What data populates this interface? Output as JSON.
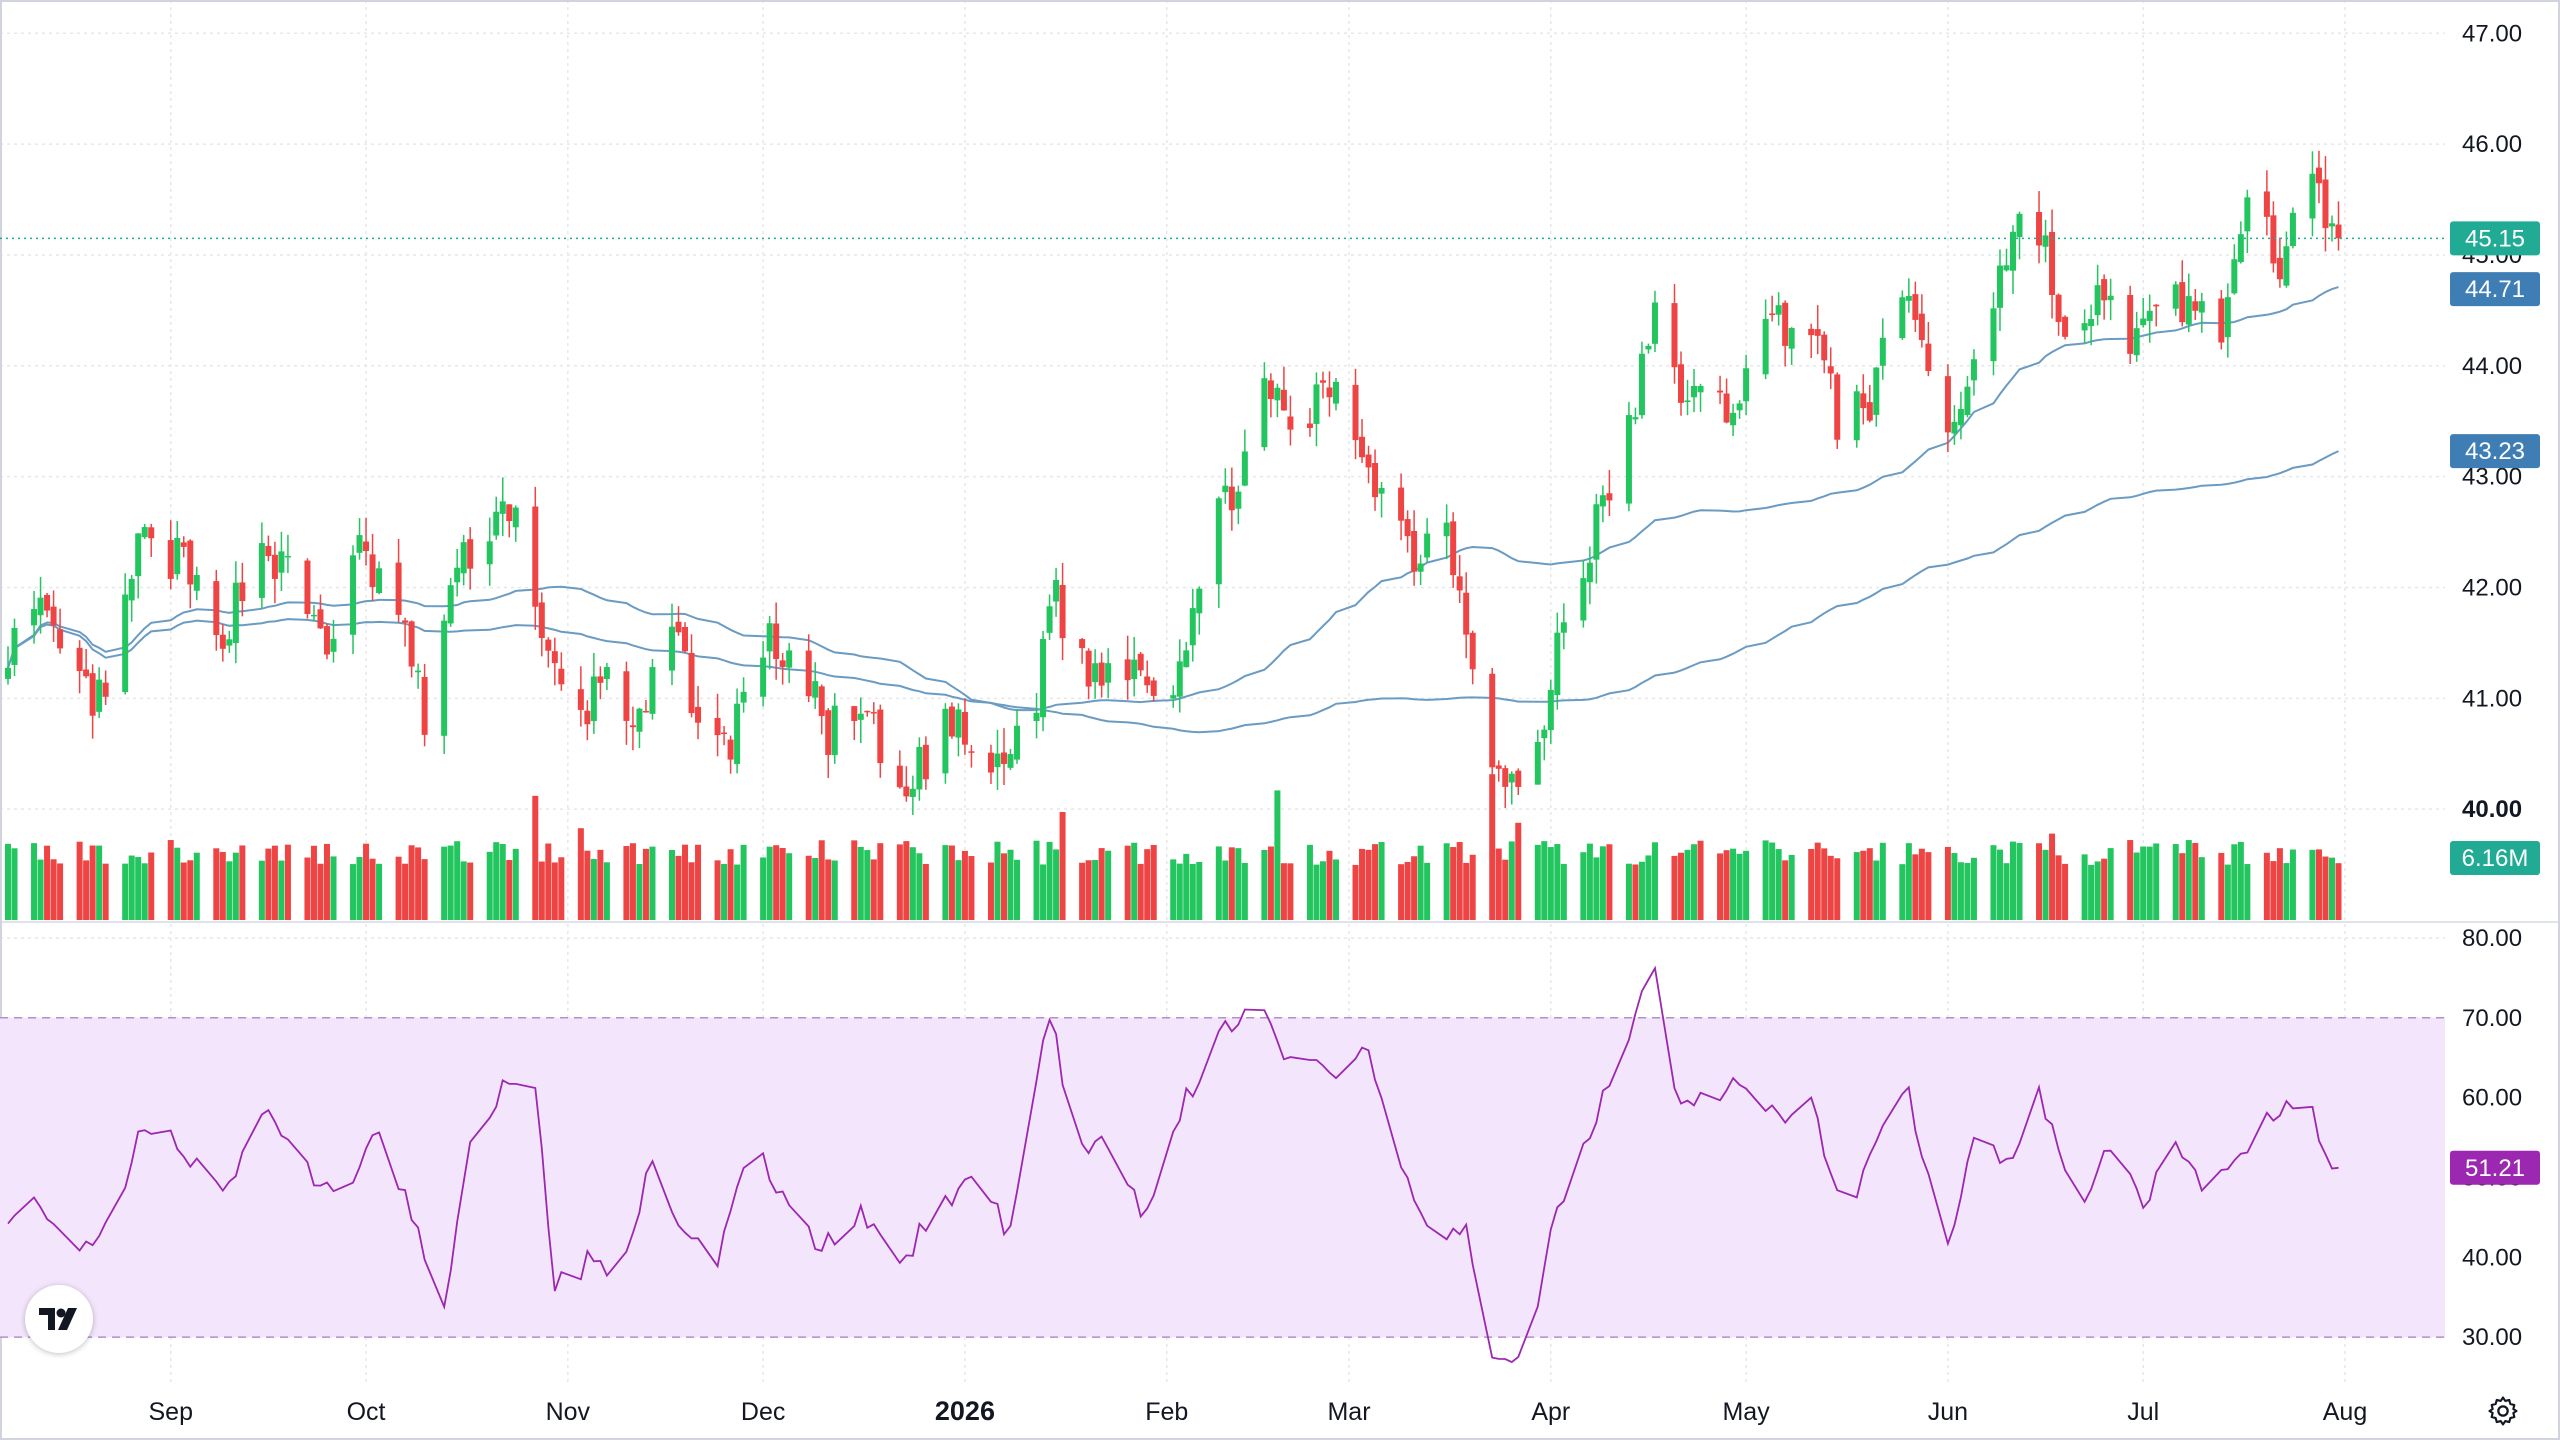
{
  "chart_data": [
    {
      "type": "candlestick",
      "price_ticks": [
        "47.00",
        "46.00",
        "45.00",
        "44.00",
        "43.00",
        "42.00",
        "41.00",
        "40.00"
      ],
      "ylim": [
        39.0,
        47.3
      ],
      "x_labels": [
        {
          "label": "Sep",
          "date": "2025-09-01"
        },
        {
          "label": "Oct",
          "date": "2025-10-01"
        },
        {
          "label": "Nov",
          "date": "2025-11-01"
        },
        {
          "label": "Dec",
          "date": "2025-12-01"
        },
        {
          "label": "2026",
          "date": "2026-01-01",
          "bold": true
        },
        {
          "label": "Feb",
          "date": "2026-02-01"
        },
        {
          "label": "Mar",
          "date": "2026-03-01"
        },
        {
          "label": "Apr",
          "date": "2026-04-01"
        },
        {
          "label": "May",
          "date": "2026-05-01"
        },
        {
          "label": "Jun",
          "date": "2026-06-01"
        },
        {
          "label": "Jul",
          "date": "2026-07-01"
        },
        {
          "label": "Aug",
          "date": "2026-08-01"
        }
      ],
      "date_range": [
        "2025-08-07",
        "2026-08-01"
      ],
      "last_price": {
        "value": 45.15,
        "label": "45.15",
        "color": "#22ab94"
      },
      "close_anchors": [
        [
          "2025-08-07",
          41.5
        ],
        [
          "2025-08-12",
          41.7
        ],
        [
          "2025-08-18",
          41.1
        ],
        [
          "2025-08-22",
          40.9
        ],
        [
          "2025-08-27",
          42.4
        ],
        [
          "2025-09-03",
          42.2
        ],
        [
          "2025-09-08",
          41.5
        ],
        [
          "2025-09-15",
          42.4
        ],
        [
          "2025-09-19",
          42.1
        ],
        [
          "2025-09-25",
          41.5
        ],
        [
          "2025-09-30",
          42.3
        ],
        [
          "2025-10-06",
          41.8
        ],
        [
          "2025-10-10",
          40.8
        ],
        [
          "2025-10-14",
          42.0
        ],
        [
          "2025-10-20",
          42.6
        ],
        [
          "2025-10-24",
          42.8
        ],
        [
          "2025-10-28",
          41.4
        ],
        [
          "2025-11-03",
          40.8
        ],
        [
          "2025-11-07",
          41.3
        ],
        [
          "2025-11-12",
          40.7
        ],
        [
          "2025-11-17",
          41.6
        ],
        [
          "2025-11-21",
          40.9
        ],
        [
          "2025-11-25",
          40.5
        ],
        [
          "2025-12-01",
          41.5
        ],
        [
          "2025-12-05",
          41.4
        ],
        [
          "2025-12-11",
          40.7
        ],
        [
          "2025-12-17",
          40.8
        ],
        [
          "2025-12-22",
          40.0
        ],
        [
          "2025-12-29",
          40.8
        ],
        [
          "2026-01-06",
          40.3
        ],
        [
          "2026-01-12",
          41.0
        ],
        [
          "2026-01-14",
          42.0
        ],
        [
          "2026-01-20",
          41.2
        ],
        [
          "2026-01-27",
          41.4
        ],
        [
          "2026-02-01",
          41.0
        ],
        [
          "2026-02-09",
          42.6
        ],
        [
          "2026-02-16",
          43.7
        ],
        [
          "2026-02-21",
          43.4
        ],
        [
          "2026-02-26",
          43.8
        ],
        [
          "2026-03-02",
          43.4
        ],
        [
          "2026-03-06",
          42.9
        ],
        [
          "2026-03-11",
          42.3
        ],
        [
          "2026-03-16",
          42.6
        ],
        [
          "2026-03-20",
          41.4
        ],
        [
          "2026-03-24",
          40.3
        ],
        [
          "2026-03-29",
          40.1
        ],
        [
          "2026-04-02",
          41.5
        ],
        [
          "2026-04-07",
          42.4
        ],
        [
          "2026-04-12",
          43.2
        ],
        [
          "2026-04-17",
          44.4
        ],
        [
          "2026-04-22",
          43.7
        ],
        [
          "2026-04-28",
          43.6
        ],
        [
          "2026-05-05",
          44.4
        ],
        [
          "2026-05-11",
          44.4
        ],
        [
          "2026-05-15",
          43.5
        ],
        [
          "2026-05-20",
          43.7
        ],
        [
          "2026-05-26",
          44.7
        ],
        [
          "2026-06-01",
          43.3
        ],
        [
          "2026-06-06",
          44.3
        ],
        [
          "2026-06-11",
          45.2
        ],
        [
          "2026-06-15",
          45.3
        ],
        [
          "2026-06-20",
          43.9
        ],
        [
          "2026-06-25",
          44.7
        ],
        [
          "2026-06-30",
          44.2
        ],
        [
          "2026-07-06",
          44.6
        ],
        [
          "2026-07-13",
          44.4
        ],
        [
          "2026-07-17",
          45.3
        ],
        [
          "2026-07-22",
          45.0
        ],
        [
          "2026-07-26",
          46.2
        ],
        [
          "2026-07-29",
          45.4
        ],
        [
          "2026-08-01",
          45.15
        ]
      ],
      "moving_averages": [
        {
          "name": "",
          "last_value": 44.71,
          "label": "44.71",
          "color": "#3f7eb5"
        },
        {
          "name": "",
          "last_value": 43.23,
          "label": "43.23",
          "color": "#3f7eb5"
        }
      ],
      "colors": {
        "up": "#22c55e",
        "down": "#ef4444",
        "ma_line": "#6a9bc3",
        "grid": "#e6e7eb"
      }
    },
    {
      "type": "bar",
      "name": "volume",
      "last_value_label": "6.16M",
      "last_value_color": "#22ab94",
      "spike_dates": [
        [
          "2025-10-27",
          4.6
        ],
        [
          "2026-01-16",
          4.0
        ],
        [
          "2026-02-18",
          4.8
        ],
        [
          "2026-03-23",
          5.4
        ],
        [
          "2026-03-27",
          3.6
        ],
        [
          "2026-06-17",
          3.2
        ],
        [
          "2026-06-28",
          2.5
        ],
        [
          "2025-11-03",
          3.4
        ]
      ]
    },
    {
      "type": "line",
      "name": "RSI",
      "ticks": [
        "80.00",
        "70.00",
        "60.00",
        "50.00",
        "40.00",
        "30.00"
      ],
      "ylim": [
        24,
        82
      ],
      "band": [
        30,
        70
      ],
      "last_value_label": "51.21",
      "color": "#9c27b0",
      "band_color": "#f3e5fc",
      "anchors": [
        [
          "2025-08-07",
          44
        ],
        [
          "2025-08-11",
          48
        ],
        [
          "2025-08-17",
          41
        ],
        [
          "2025-08-23",
          45
        ],
        [
          "2025-08-28",
          57
        ],
        [
          "2025-09-03",
          54
        ],
        [
          "2025-09-09",
          47
        ],
        [
          "2025-09-16",
          58
        ],
        [
          "2025-09-22",
          51
        ],
        [
          "2025-09-28",
          47
        ],
        [
          "2025-10-03",
          56
        ],
        [
          "2025-10-08",
          45
        ],
        [
          "2025-10-13",
          34
        ],
        [
          "2025-10-17",
          53
        ],
        [
          "2025-10-22",
          61
        ],
        [
          "2025-10-27",
          62
        ],
        [
          "2025-10-30",
          36
        ],
        [
          "2025-11-05",
          40
        ],
        [
          "2025-11-09",
          38
        ],
        [
          "2025-11-14",
          52
        ],
        [
          "2025-11-19",
          42
        ],
        [
          "2025-11-24",
          40
        ],
        [
          "2025-11-29",
          55
        ],
        [
          "2025-12-04",
          47
        ],
        [
          "2025-12-10",
          41
        ],
        [
          "2025-12-16",
          46
        ],
        [
          "2025-12-22",
          38
        ],
        [
          "2025-12-27",
          46
        ],
        [
          "2026-01-02",
          50
        ],
        [
          "2026-01-08",
          43
        ],
        [
          "2026-01-14",
          71
        ],
        [
          "2026-01-18",
          55
        ],
        [
          "2026-01-24",
          53
        ],
        [
          "2026-01-29",
          45
        ],
        [
          "2026-02-04",
          60
        ],
        [
          "2026-02-09",
          67
        ],
        [
          "2026-02-15",
          74
        ],
        [
          "2026-02-19",
          64
        ],
        [
          "2026-02-24",
          66
        ],
        [
          "2026-02-28",
          62
        ],
        [
          "2026-03-04",
          66
        ],
        [
          "2026-03-09",
          51
        ],
        [
          "2026-03-15",
          42
        ],
        [
          "2026-03-19",
          44
        ],
        [
          "2026-03-23",
          28
        ],
        [
          "2026-03-28",
          26
        ],
        [
          "2026-04-01",
          44
        ],
        [
          "2026-04-05",
          52
        ],
        [
          "2026-04-10",
          62
        ],
        [
          "2026-04-17",
          76
        ],
        [
          "2026-04-21",
          58
        ],
        [
          "2026-04-26",
          60
        ],
        [
          "2026-05-01",
          62
        ],
        [
          "2026-05-06",
          57
        ],
        [
          "2026-05-11",
          61
        ],
        [
          "2026-05-16",
          44
        ],
        [
          "2026-05-21",
          56
        ],
        [
          "2026-05-26",
          60
        ],
        [
          "2026-06-01",
          42
        ],
        [
          "2026-06-06",
          57
        ],
        [
          "2026-06-10",
          52
        ],
        [
          "2026-06-15",
          60
        ],
        [
          "2026-06-21",
          47
        ],
        [
          "2026-06-26",
          54
        ],
        [
          "2026-07-01",
          47
        ],
        [
          "2026-07-06",
          55
        ],
        [
          "2026-07-11",
          48
        ],
        [
          "2026-07-16",
          53
        ],
        [
          "2026-07-20",
          57
        ],
        [
          "2026-07-26",
          61
        ],
        [
          "2026-07-29",
          53
        ],
        [
          "2026-08-01",
          51.21
        ]
      ]
    }
  ]
}
